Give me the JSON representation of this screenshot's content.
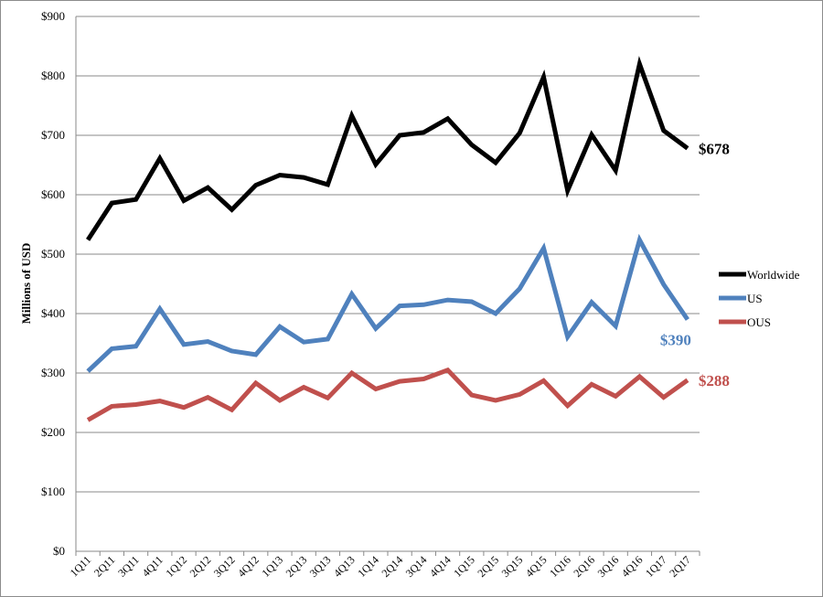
{
  "chart_data": {
    "type": "line",
    "title": "",
    "xlabel": "",
    "ylabel": "Millions of USD",
    "ylim": [
      0,
      900
    ],
    "y_ticks": [
      0,
      100,
      200,
      300,
      400,
      500,
      600,
      700,
      800,
      900
    ],
    "y_tick_labels": [
      "$0",
      "$100",
      "$200",
      "$300",
      "$400",
      "$500",
      "$600",
      "$700",
      "$800",
      "$900"
    ],
    "grid": "horizontal",
    "legend_position": "right",
    "categories": [
      "1Q11",
      "2Q11",
      "3Q11",
      "4Q11",
      "1Q12",
      "2Q12",
      "3Q12",
      "4Q12",
      "1Q13",
      "2Q13",
      "3Q13",
      "4Q13",
      "1Q14",
      "2Q14",
      "3Q14",
      "4Q14",
      "1Q15",
      "2Q15",
      "3Q15",
      "4Q15",
      "1Q16",
      "2Q16",
      "3Q16",
      "4Q16",
      "1Q17",
      "2Q17"
    ],
    "series": [
      {
        "name": "Worldwide",
        "color": "#000000",
        "end_label": "$678",
        "values": [
          524,
          586,
          592,
          661,
          590,
          612,
          575,
          616,
          633,
          629,
          617,
          733,
          651,
          700,
          705,
          728,
          684,
          654,
          704,
          798,
          607,
          701,
          641,
          820,
          708,
          678
        ]
      },
      {
        "name": "US",
        "color": "#4f81bd",
        "end_label": "$390",
        "values": [
          303,
          341,
          345,
          408,
          348,
          353,
          337,
          331,
          378,
          352,
          357,
          433,
          375,
          413,
          415,
          423,
          420,
          400,
          442,
          510,
          361,
          419,
          379,
          524,
          449,
          390
        ]
      },
      {
        "name": "OUS",
        "color": "#c0504d",
        "end_label": "$288",
        "values": [
          221,
          244,
          247,
          253,
          242,
          259,
          238,
          283,
          254,
          276,
          258,
          300,
          273,
          286,
          290,
          305,
          263,
          254,
          264,
          287,
          245,
          281,
          261,
          294,
          259,
          288
        ]
      }
    ]
  }
}
